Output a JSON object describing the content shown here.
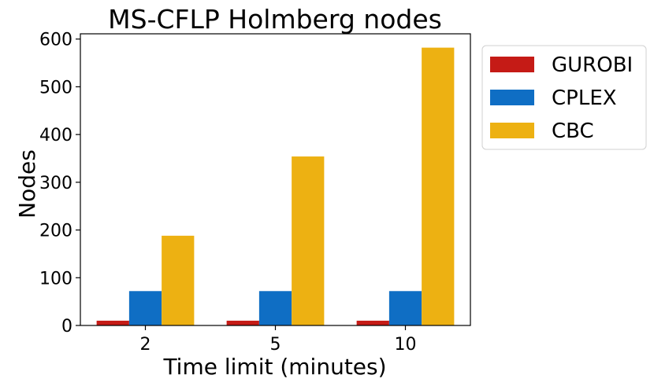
{
  "chart_data": {
    "type": "bar",
    "title": "MS-CFLP Holmberg nodes",
    "xlabel": "Time limit (minutes)",
    "ylabel": "Nodes",
    "categories": [
      "2",
      "5",
      "10"
    ],
    "series": [
      {
        "name": "GUROBI",
        "color": "#c51b16",
        "values": [
          10,
          10,
          10
        ]
      },
      {
        "name": "CPLEX",
        "color": "#0f6ec4",
        "values": [
          72,
          72,
          72
        ]
      },
      {
        "name": "CBC",
        "color": "#edb112",
        "values": [
          188,
          354,
          582
        ]
      }
    ],
    "yticks": [
      0,
      100,
      200,
      300,
      400,
      500,
      600
    ],
    "ylim": [
      0,
      611
    ],
    "grid": false,
    "legend_position": "outside-top-right"
  }
}
